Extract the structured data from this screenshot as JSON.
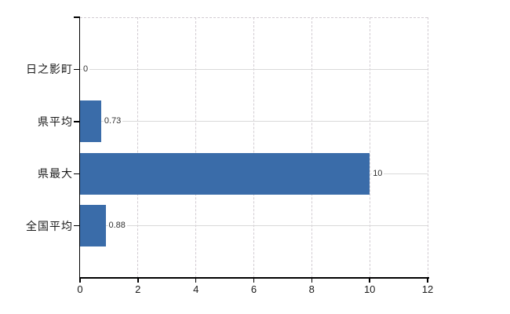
{
  "chart_data": {
    "type": "bar",
    "orientation": "horizontal",
    "title": "",
    "categories": [
      "日之影町",
      "県平均",
      "県最大",
      "全国平均"
    ],
    "values": [
      0,
      0.73,
      10,
      0.88
    ],
    "value_labels": [
      "0",
      "0.73",
      "10",
      "0.88"
    ],
    "x_ticks": [
      0,
      2,
      4,
      6,
      8,
      10,
      12
    ],
    "x_tick_labels": [
      "0",
      "2",
      "4",
      "6",
      "8",
      "10",
      "12"
    ],
    "xlim": [
      0,
      12
    ],
    "grid": "on",
    "legend_position": "none",
    "colors": {
      "bar": "#3A6CA9",
      "grid_solid": "#D9D9D9",
      "grid_dashed": "#D2CCD2",
      "axis": "#000000",
      "label_text": "#1A1A1A",
      "value_text": "#333333",
      "background": "#FFFFFF"
    }
  }
}
